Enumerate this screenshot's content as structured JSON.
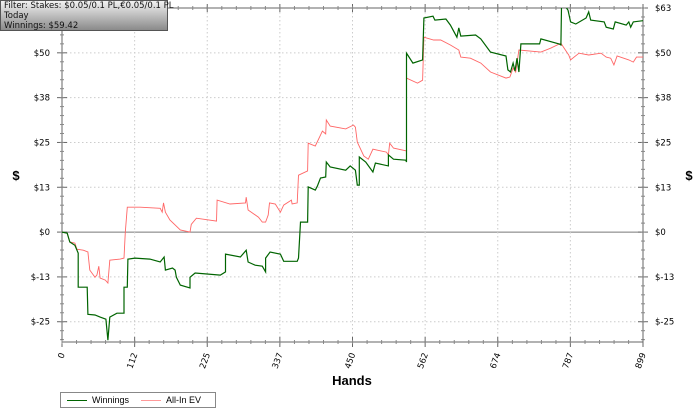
{
  "info": {
    "filter": "Filter: Stakes: $0.05/0.1 PL,€0.05/0.1 PL",
    "period": "Today",
    "winnings": "Winnings: $59.42"
  },
  "chart_data": {
    "type": "line",
    "title": "",
    "xlabel": "Hands",
    "ylabel": "$",
    "xlim": [
      0,
      899
    ],
    "ylim": [
      -30.9,
      63
    ],
    "x_ticks": [
      0,
      112.4,
      224.75,
      337.1,
      449.5,
      561.9,
      674.25,
      786.6,
      899
    ],
    "x_tick_labels": [
      "0",
      "112",
      "225",
      "337",
      "450",
      "562",
      "674",
      "787",
      "899"
    ],
    "y_ticks": [
      63,
      50.4,
      37.8,
      25.2,
      12.6,
      0,
      -12.6,
      -25.2
    ],
    "y_tick_labels": [
      "$63",
      "$50",
      "$38",
      "$25",
      "$13",
      "$0",
      "$-13",
      "$-25"
    ],
    "grid": true,
    "legend_position": "bottom-left",
    "series": [
      {
        "name": "Winnings",
        "color": "#006400",
        "x": [
          0,
          8,
          12,
          20,
          25,
          25,
          39,
          40,
          51,
          59,
          68,
          71,
          74,
          85,
          96,
          96,
          101,
          102,
          113,
          136,
          152,
          158,
          160,
          171,
          175,
          177,
          183,
          198,
          198,
          206,
          245,
          253,
          253,
          276,
          285,
          288,
          299,
          310,
          315,
          315,
          322,
          338,
          343,
          364,
          366,
          369,
          380,
          381,
          392,
          395,
          400,
          408,
          409,
          415,
          439,
          446,
          454,
          457,
          460,
          460,
          470,
          481,
          485,
          505,
          505,
          513,
          532,
          533,
          533,
          543,
          558,
          560,
          574,
          577,
          594,
          601,
          611,
          614,
          617,
          640,
          648,
          663,
          687,
          690,
          694,
          698,
          701,
          704,
          707,
          710,
          739,
          741,
          769,
          772,
          773,
          783,
          787,
          795,
          811,
          815,
          818,
          839,
          842,
          853,
          856,
          873,
          877,
          880,
          884,
          899
        ],
        "y": [
          0,
          -0.3,
          -2.8,
          -3.7,
          -5.9,
          -15.5,
          -15.5,
          -23.1,
          -23.3,
          -23.9,
          -24.5,
          -30.4,
          -23.9,
          -22.8,
          -22.8,
          -15.5,
          -15.5,
          -7.6,
          -7.3,
          -7.6,
          -8.4,
          -7.0,
          -10.7,
          -10.1,
          -10.7,
          -12.7,
          -14.9,
          -15.7,
          -12.7,
          -11.5,
          -12.1,
          -11.2,
          -6.2,
          -7.0,
          -5.1,
          -8.4,
          -9.3,
          -9.6,
          -11.2,
          -7.3,
          -5.6,
          -6.2,
          -8.2,
          -8.2,
          -7.3,
          2.8,
          2.8,
          12.7,
          11.8,
          12.9,
          15.2,
          15.5,
          19.7,
          18.3,
          17.4,
          18.6,
          17.4,
          13.2,
          13.2,
          21.1,
          19.7,
          16.9,
          19.4,
          18.6,
          21.7,
          20.5,
          20.2,
          19.7,
          50.3,
          47.5,
          48.4,
          60.2,
          60.7,
          59.6,
          59.9,
          58.2,
          54.8,
          57.4,
          55.1,
          55.4,
          54.3,
          50.6,
          49.5,
          45.6,
          45.0,
          47.5,
          45.3,
          48.9,
          45.0,
          52.9,
          52.9,
          54.3,
          52.9,
          52.6,
          65,
          62.4,
          59.1,
          58.5,
          60.2,
          61.9,
          59.6,
          59.1,
          57.6,
          57.1,
          59.1,
          58.2,
          59.1,
          57.6,
          59.1,
          59.42
        ]
      },
      {
        "name": "All-In EV",
        "color": "#ff6666",
        "x": [
          0,
          8,
          12,
          20,
          23,
          33,
          40,
          43,
          51,
          54,
          57,
          59,
          67,
          71,
          74,
          90,
          96,
          98,
          101,
          121,
          152,
          155,
          157,
          160,
          167,
          183,
          198,
          200,
          208,
          239,
          240,
          260,
          284,
          285,
          288,
          304,
          310,
          315,
          319,
          321,
          330,
          338,
          343,
          355,
          356,
          364,
          366,
          380,
          381,
          392,
          403,
          408,
          409,
          415,
          439,
          451,
          454,
          457,
          467,
          474,
          481,
          502,
          505,
          507,
          513,
          533,
          533,
          550,
          558,
          560,
          575,
          586,
          601,
          614,
          617,
          632,
          648,
          663,
          687,
          693,
          698,
          702,
          707,
          741,
          756,
          772,
          777,
          784,
          787,
          800,
          815,
          834,
          842,
          849,
          854,
          859,
          877,
          884,
          889,
          899
        ],
        "y": [
          0,
          -0.3,
          -2.8,
          -3.1,
          -4.8,
          -5.1,
          -5.6,
          -10.7,
          -12.7,
          -12.1,
          -9.6,
          -12.9,
          -13.5,
          -14.3,
          -7.9,
          -7.6,
          -7.3,
          0,
          7.0,
          7.0,
          6.7,
          5.6,
          8.2,
          5.6,
          3.4,
          0.6,
          0,
          2.2,
          3.9,
          3.1,
          9.0,
          7.9,
          8.2,
          9.8,
          6.2,
          4.2,
          2.8,
          2.8,
          4.8,
          8.2,
          7.9,
          5.6,
          7.6,
          9.0,
          7.9,
          8.2,
          16.0,
          17.2,
          25.0,
          24.2,
          28.4,
          27.6,
          31.5,
          29.8,
          29.0,
          30.1,
          29.5,
          25.3,
          21.4,
          20.5,
          23.3,
          22.5,
          21.7,
          25.0,
          23.6,
          22.8,
          43.3,
          41.9,
          42.7,
          54.8,
          54.0,
          54.0,
          52.6,
          51.2,
          49.2,
          48.9,
          47.5,
          45.0,
          43.3,
          43.6,
          46.1,
          45.0,
          51.2,
          50.6,
          51.7,
          53.1,
          51.7,
          49.8,
          48.4,
          50.3,
          49.8,
          50.3,
          49.2,
          48.9,
          47.0,
          49.5,
          48.4,
          47.8,
          49.2,
          49.2
        ]
      }
    ]
  }
}
